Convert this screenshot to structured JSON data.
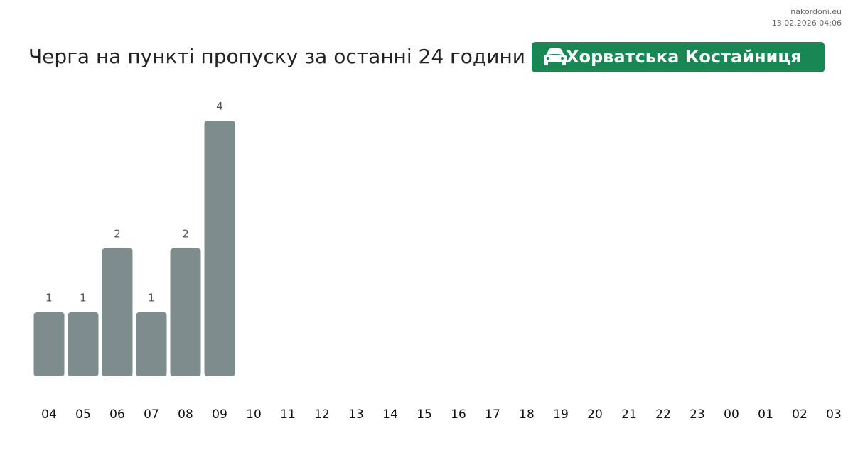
{
  "site": "nakordoni.eu",
  "timestamp": "13.02.2026 04:06",
  "chart_data": {
    "type": "bar",
    "title": "Черга на пункті пропуску за останні 24 години",
    "badge": "Хорватська Костайниця",
    "categories": [
      "04",
      "05",
      "06",
      "07",
      "08",
      "09",
      "10",
      "11",
      "12",
      "13",
      "14",
      "15",
      "16",
      "17",
      "18",
      "19",
      "20",
      "21",
      "22",
      "23",
      "00",
      "01",
      "02",
      "03"
    ],
    "values": [
      1,
      1,
      2,
      1,
      2,
      4,
      null,
      null,
      null,
      null,
      null,
      null,
      null,
      null,
      null,
      null,
      null,
      null,
      null,
      null,
      null,
      null,
      null,
      null
    ],
    "color": "#7f8c8d"
  }
}
